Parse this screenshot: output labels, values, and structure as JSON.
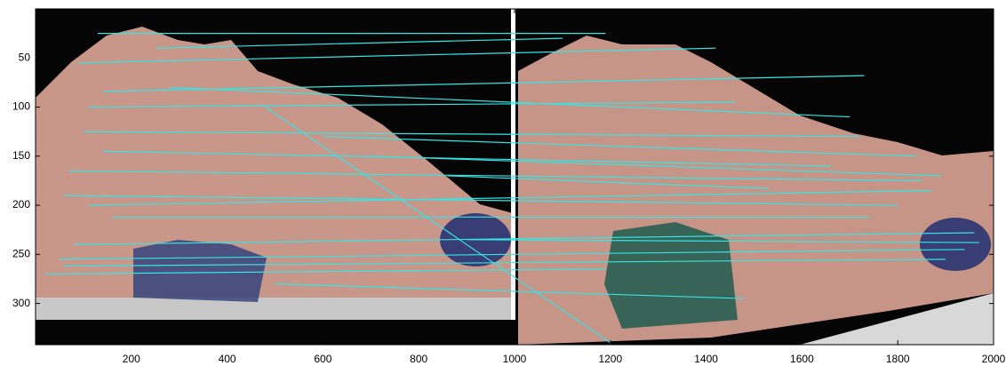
{
  "chart_data": {
    "type": "image-matches",
    "xlim": [
      0,
      2000
    ],
    "ylim": [
      0,
      342
    ],
    "xticks": [
      200,
      400,
      600,
      800,
      1000,
      1200,
      1400,
      1600,
      1800,
      2000
    ],
    "yticks": [
      50,
      100,
      150,
      200,
      250,
      300
    ],
    "color": "#33e6e6",
    "segments": {
      "x1": [
        130,
        90,
        140,
        110,
        100,
        140,
        70,
        60,
        110,
        160,
        80,
        50,
        60,
        20,
        500,
        480,
        860,
        600,
        280,
        900,
        250,
        700
      ],
      "y1": [
        25,
        55,
        84,
        100,
        125,
        145,
        165,
        190,
        200,
        212,
        240,
        255,
        262,
        270,
        280,
        100,
        170,
        130,
        80,
        235,
        40,
        150
      ],
      "x2": [
        1190,
        1420,
        1730,
        1460,
        1720,
        1660,
        1850,
        1800,
        1870,
        1740,
        1960,
        1940,
        1900,
        1190,
        1480,
        1200,
        1530,
        1840,
        1700,
        1970,
        1100,
        1890
      ],
      "y2": [
        25,
        40,
        68,
        95,
        130,
        160,
        175,
        200,
        185,
        212,
        228,
        245,
        255,
        265,
        295,
        340,
        183,
        150,
        110,
        238,
        30,
        170
      ]
    }
  }
}
